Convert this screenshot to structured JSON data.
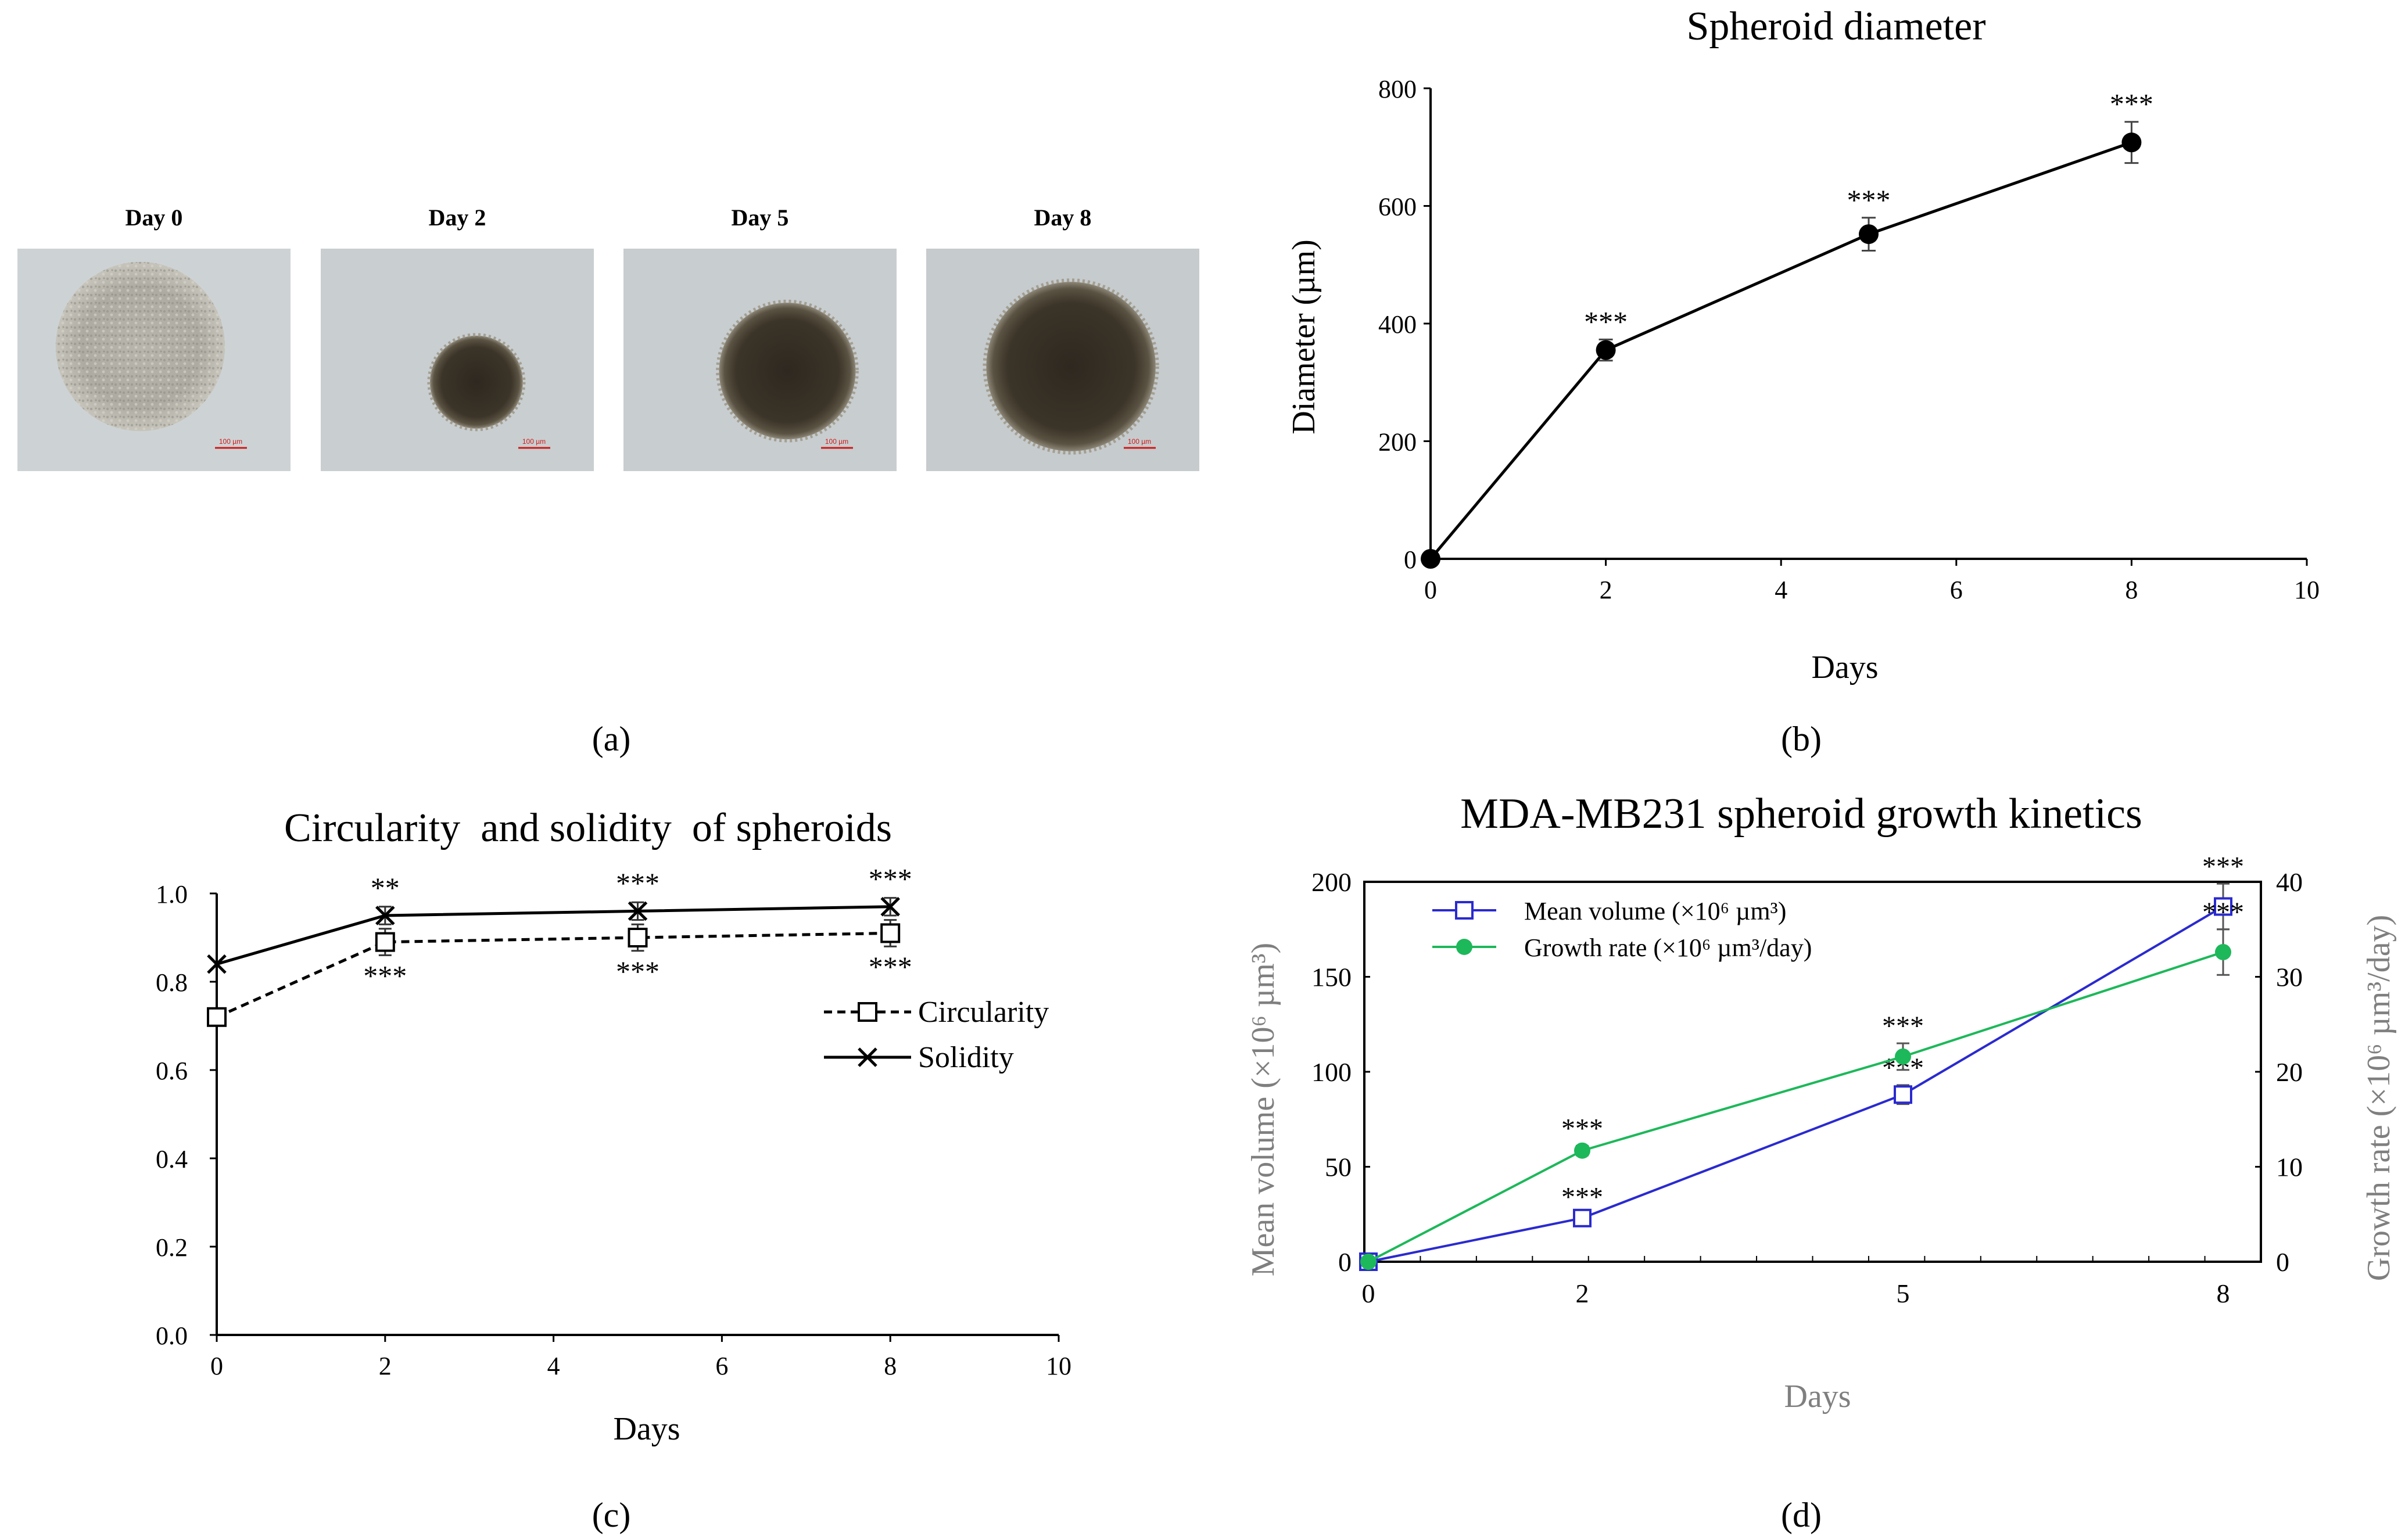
{
  "panel_labels": {
    "a": "(a)",
    "b": "(b)",
    "c": "(c)",
    "d": "(d)"
  },
  "micrographs": {
    "scale_bar_text": "100 µm",
    "images": [
      {
        "label": "Day 0",
        "spheroid": "loose"
      },
      {
        "label": "Day 2",
        "spheroid": "small-dense"
      },
      {
        "label": "Day 5",
        "spheroid": "medium-dense"
      },
      {
        "label": "Day 8",
        "spheroid": "large-dense"
      }
    ]
  },
  "chart_data": [
    {
      "id": "b",
      "type": "line",
      "title": "Spheroid diameter",
      "xlabel": "Days",
      "ylabel": "Diameter (µm)",
      "xlim": [
        0,
        10
      ],
      "ylim": [
        0,
        800
      ],
      "xticks": [
        0,
        2,
        4,
        6,
        8,
        10
      ],
      "yticks": [
        0,
        200,
        400,
        600,
        800
      ],
      "grid": false,
      "series": [
        {
          "x": [
            0,
            2,
            5,
            8
          ],
          "y": [
            0,
            355,
            552,
            708
          ],
          "error": [
            0,
            18,
            28,
            35
          ],
          "marker": "filled-circle",
          "color": "#000000",
          "annotations": [
            "",
            "***",
            "***",
            "***"
          ]
        }
      ]
    },
    {
      "id": "c",
      "type": "line",
      "title": "Circularity  and solidity  of spheroids",
      "xlabel": "Days",
      "ylabel": "",
      "xlim": [
        0,
        10
      ],
      "ylim": [
        0.0,
        1.0
      ],
      "xticks": [
        0,
        2,
        4,
        6,
        8,
        10
      ],
      "yticks": [
        "0.0",
        "0.2",
        "0.4",
        "0.6",
        "0.8",
        "1.0"
      ],
      "legend_position": "right",
      "grid": false,
      "series": [
        {
          "name": "Circularity",
          "x": [
            0,
            2,
            5,
            8
          ],
          "y": [
            0.72,
            0.89,
            0.9,
            0.91
          ],
          "error": [
            0.0,
            0.03,
            0.03,
            0.03
          ],
          "marker": "open-square",
          "line": "dashed",
          "color": "#000000",
          "annotations": [
            "",
            "***",
            "***",
            "***"
          ]
        },
        {
          "name": "Solidity",
          "x": [
            0,
            2,
            5,
            8
          ],
          "y": [
            0.84,
            0.95,
            0.96,
            0.97
          ],
          "error": [
            0.0,
            0.02,
            0.02,
            0.02
          ],
          "marker": "x",
          "line": "solid",
          "color": "#000000",
          "annotations": [
            "",
            "**",
            "***",
            "***"
          ]
        }
      ]
    },
    {
      "id": "d",
      "type": "line",
      "title": "MDA-MB231 spheroid growth kinetics",
      "xlabel": "Days",
      "ylabel_left": "Mean volume (×10⁶ µm³)",
      "ylabel_right": "Growth rate (×10⁶ µm³/day)",
      "x_categories": [
        "0",
        "2",
        "5",
        "8"
      ],
      "ylim_left": [
        0,
        200
      ],
      "ylim_right": [
        0,
        40
      ],
      "yticks_left": [
        0,
        50,
        100,
        150,
        200
      ],
      "yticks_right": [
        0,
        10,
        20,
        30,
        40
      ],
      "legend_position": "top-left",
      "grid": false,
      "series": [
        {
          "name": "Mean volume (×10⁶ µm³)",
          "axis": "left",
          "x": [
            0,
            2,
            5,
            8
          ],
          "y": [
            0,
            23,
            88,
            187
          ],
          "error": [
            0,
            2,
            5,
            12
          ],
          "marker": "open-square",
          "color": "#2a2ad0",
          "annotations": [
            "",
            "***",
            "***",
            "***"
          ]
        },
        {
          "name": "Growth rate (×10⁶ µm³/day)",
          "axis": "right",
          "x": [
            0,
            2,
            5,
            8
          ],
          "y": [
            0,
            11.7,
            21.6,
            32.6
          ],
          "error": [
            0,
            0.5,
            1.4,
            2.4
          ],
          "marker": "filled-circle",
          "color": "#1db85a",
          "annotations": [
            "",
            "***",
            "***",
            "***"
          ]
        }
      ]
    }
  ]
}
